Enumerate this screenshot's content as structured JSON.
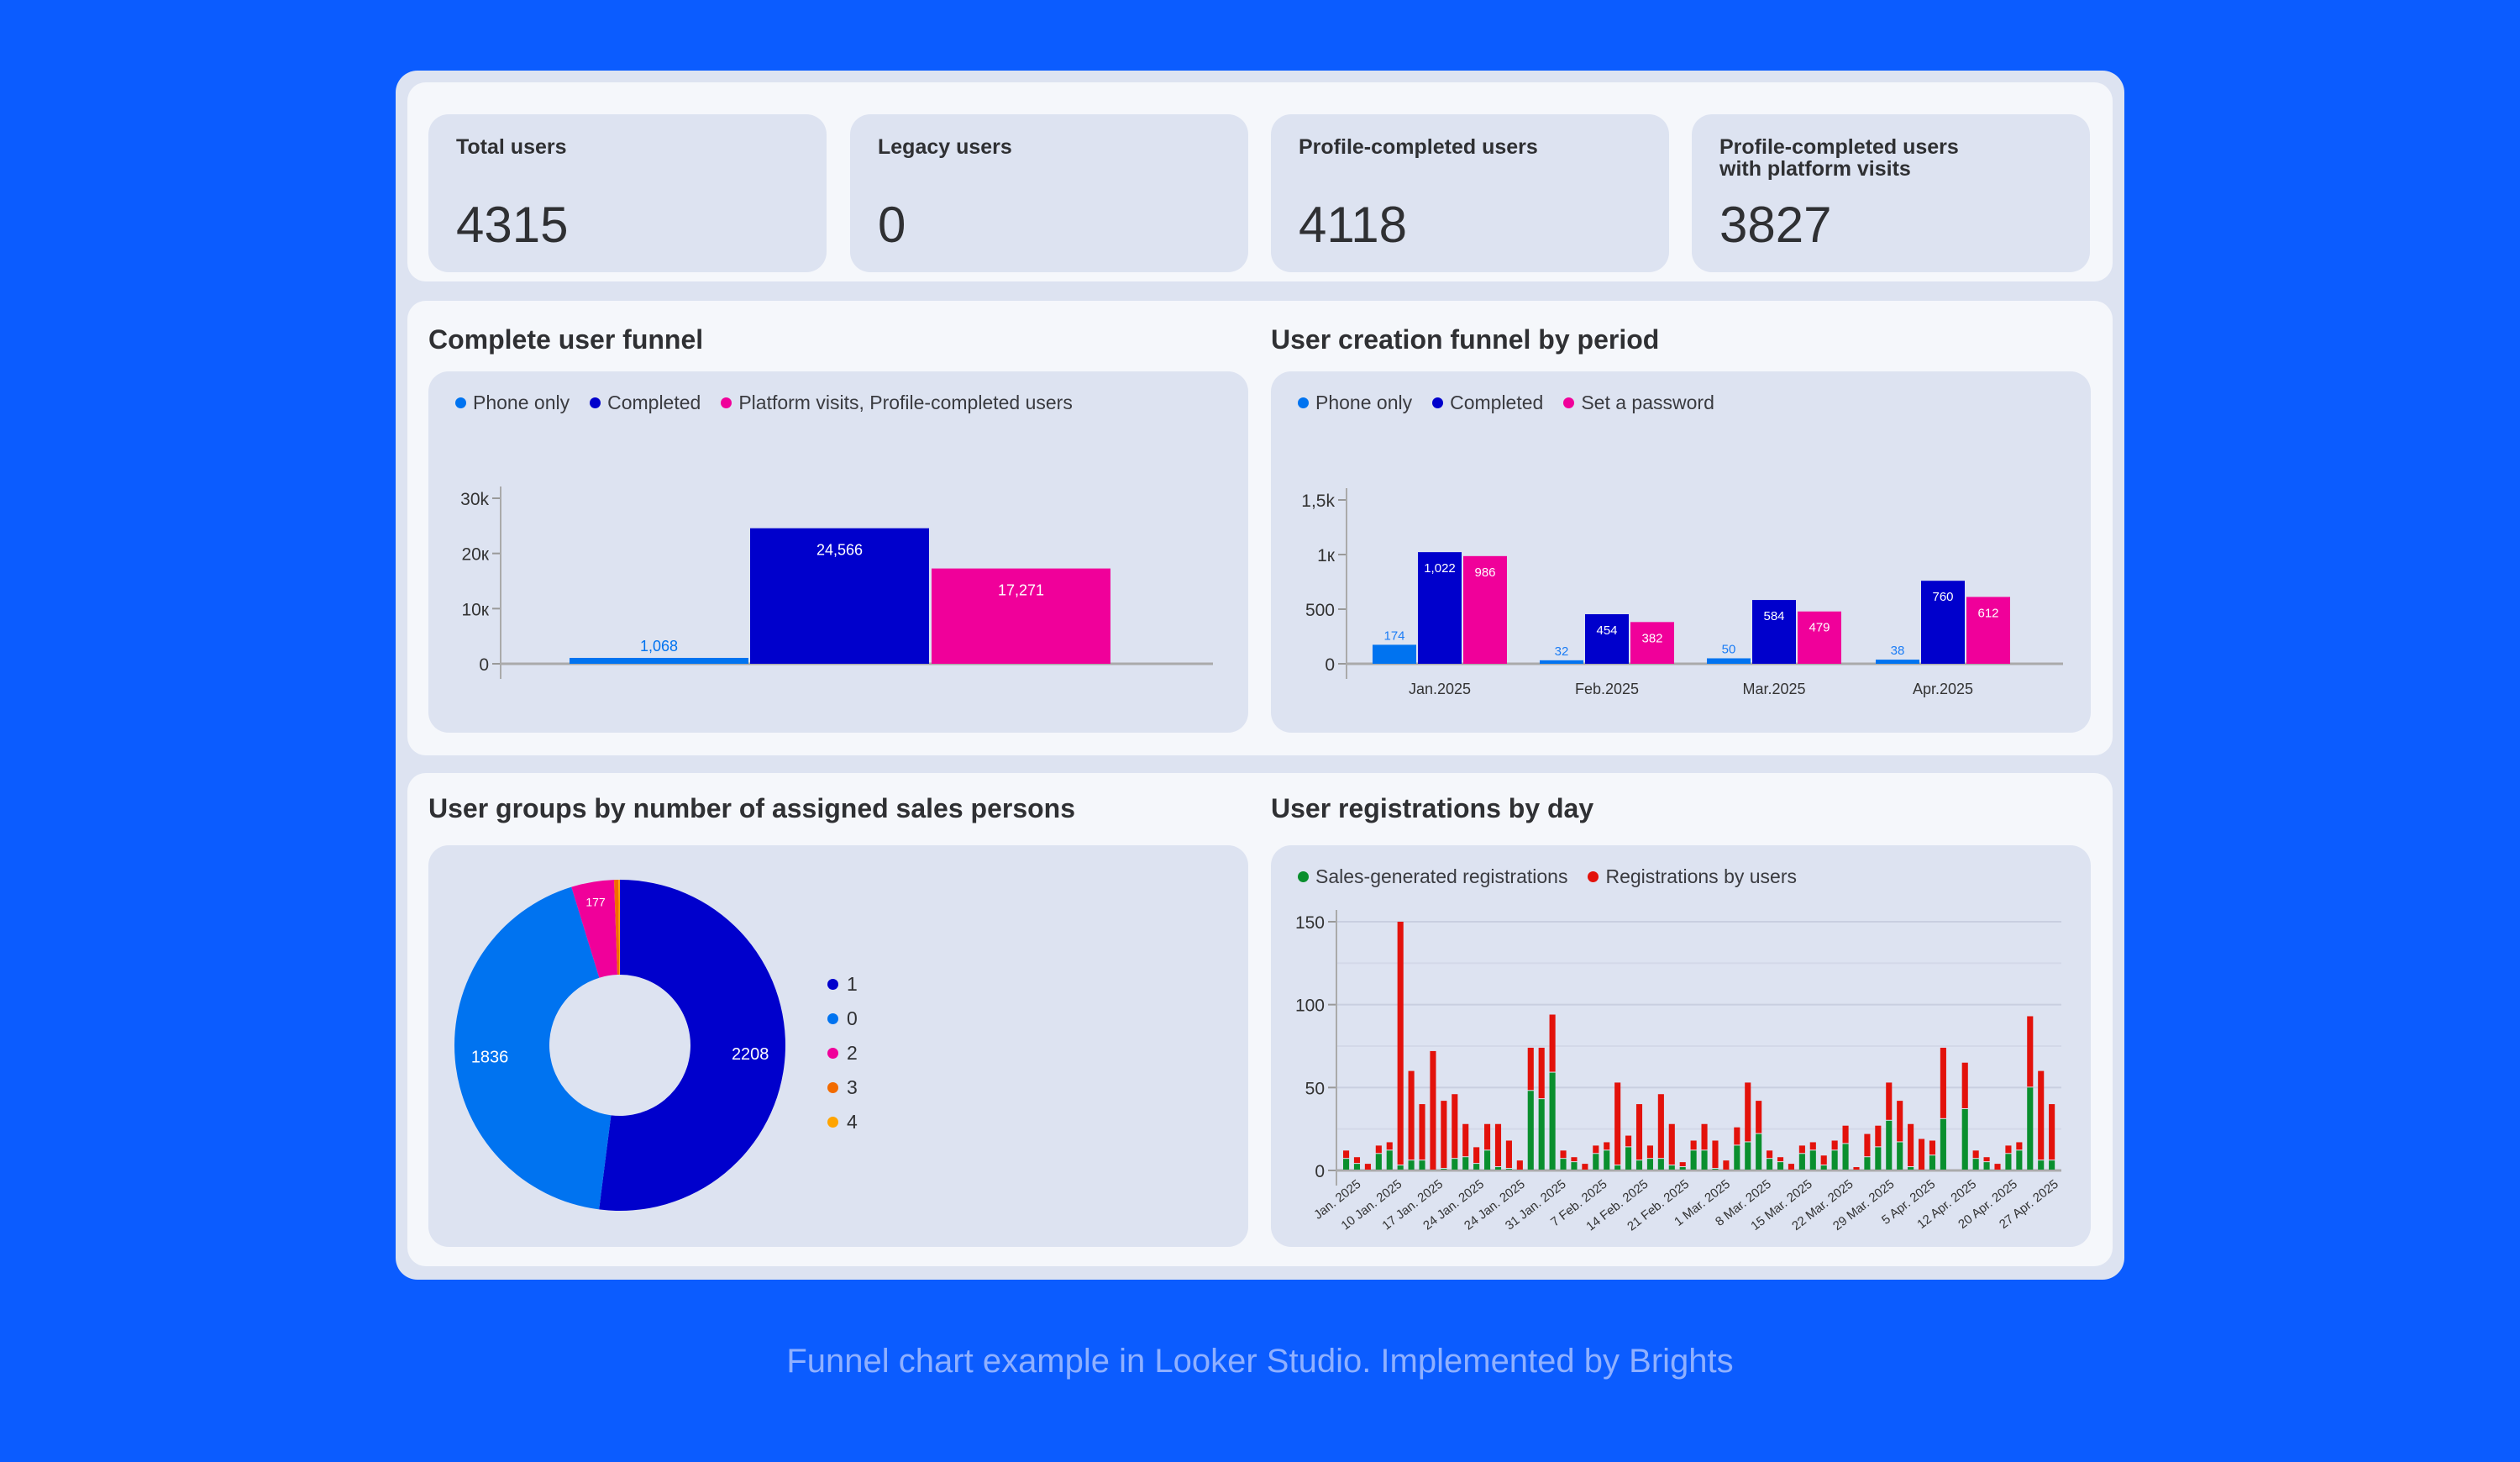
{
  "kpis": [
    {
      "label": "Total users",
      "value": "4315"
    },
    {
      "label": "Legacy users",
      "value": "0"
    },
    {
      "label": "Profile-completed users",
      "value": "4118"
    },
    {
      "label": "Profile-completed users with platform visits",
      "value": "3827"
    }
  ],
  "panels": {
    "funnel_title": "Complete user funnel",
    "period_title": "User creation funnel by period",
    "groups_title": "User groups by number of assigned sales persons",
    "daily_title": "User registrations by day"
  },
  "caption": "Funnel chart example in Looker Studio. Implemented by Brights",
  "chart_data": [
    {
      "type": "bar",
      "id": "funnel",
      "series": [
        {
          "name": "Phone only",
          "value": 1068,
          "label": "1,068",
          "color": "#0073f0"
        },
        {
          "name": "Completed",
          "value": 24566,
          "label": "24,566",
          "color": "#0000cc"
        },
        {
          "name": "Platform visits, Profile-completed users",
          "value": 17271,
          "label": "17,271",
          "color": "#f0009a"
        }
      ],
      "yticks": [
        {
          "v": 0,
          "t": "0"
        },
        {
          "v": 10000,
          "t": "10к"
        },
        {
          "v": 20000,
          "t": "20к"
        },
        {
          "v": 30000,
          "t": "30k"
        }
      ],
      "ylim": [
        0,
        30000
      ]
    },
    {
      "type": "bar",
      "id": "period",
      "categories": [
        "Jan.2025",
        "Feb.2025",
        "Mar.2025",
        "Apr.2025"
      ],
      "series": [
        {
          "name": "Phone only",
          "color": "#0073f0",
          "values": [
            174,
            32,
            50,
            38
          ],
          "labels": [
            "174",
            "32",
            "50",
            "38"
          ]
        },
        {
          "name": "Completed",
          "color": "#0000cc",
          "values": [
            1022,
            454,
            584,
            760
          ],
          "labels": [
            "1,022",
            "454",
            "584",
            "760"
          ]
        },
        {
          "name": "Set a password",
          "color": "#f0009a",
          "values": [
            986,
            382,
            479,
            612
          ],
          "labels": [
            "986",
            "382",
            "479",
            "612"
          ]
        }
      ],
      "yticks": [
        {
          "v": 0,
          "t": "0"
        },
        {
          "v": 500,
          "t": "500"
        },
        {
          "v": 1000,
          "t": "1к"
        },
        {
          "v": 1500,
          "t": "1,5k"
        }
      ],
      "ylim": [
        0,
        1500
      ]
    },
    {
      "type": "pie",
      "id": "groups",
      "donut": true,
      "slices": [
        {
          "name": "1",
          "value": 2208,
          "label": "2208",
          "color": "#0000cc"
        },
        {
          "name": "0",
          "value": 1836,
          "label": "1836",
          "color": "#0073f0"
        },
        {
          "name": "2",
          "value": 177,
          "label": "177",
          "color": "#f0009a"
        },
        {
          "name": "3",
          "value": 18,
          "label": "",
          "color": "#f26b00"
        },
        {
          "name": "4",
          "value": 6,
          "label": "",
          "color": "#ffa400"
        }
      ],
      "legend": "right"
    },
    {
      "type": "bar",
      "id": "daily",
      "stacked": true,
      "series": [
        {
          "name": "Sales-generated registrations",
          "color": "#0a8f2e",
          "values": [
            7,
            4,
            0,
            10,
            12,
            3,
            6,
            6,
            0,
            1,
            7,
            8,
            4,
            12,
            2,
            1,
            0,
            48,
            43,
            59,
            7,
            5,
            0,
            10,
            12,
            3,
            14,
            6,
            7,
            7,
            3,
            2,
            12,
            12,
            1,
            0,
            15,
            17,
            22,
            7,
            5,
            0,
            10,
            12,
            3,
            12,
            16,
            0,
            8,
            14,
            30,
            17,
            2,
            0,
            9,
            31,
            0,
            37,
            7,
            5,
            0,
            10,
            12,
            50,
            6,
            6
          ]
        },
        {
          "name": "Registrations by users",
          "color": "#e3120b",
          "values": [
            5,
            4,
            4,
            5,
            5,
            147,
            54,
            34,
            72,
            41,
            39,
            20,
            10,
            16,
            26,
            17,
            6,
            26,
            31,
            35,
            5,
            3,
            4,
            5,
            5,
            50,
            7,
            34,
            8,
            39,
            25,
            3,
            6,
            16,
            17,
            6,
            11,
            36,
            20,
            5,
            3,
            4,
            5,
            5,
            6,
            6,
            11,
            2,
            14,
            13,
            23,
            25,
            26,
            19,
            9,
            43,
            0,
            28,
            5,
            3,
            4,
            5,
            5,
            43,
            54,
            34
          ]
        }
      ],
      "xticks": [
        "Jan. 2025",
        "10 Jan. 2025",
        "17 Jan. 2025",
        "24 Jan. 2025",
        "24 Jan. 2025",
        "31 Jan. 2025",
        "7 Feb. 2025",
        "14 Feb. 2025",
        "21 Feb. 2025",
        "1 Mar. 2025",
        "8 Mar. 2025",
        "15 Mar. 2025",
        "22 Mar. 2025",
        "29 Mar. 2025",
        "5 Apr. 2025",
        "12 Apr. 2025",
        "20 Apr. 2025",
        "27 Apr. 2025"
      ],
      "yticks": [
        {
          "v": 0,
          "t": "0"
        },
        {
          "v": 50,
          "t": "50"
        },
        {
          "v": 100,
          "t": "100"
        },
        {
          "v": 150,
          "t": "150"
        }
      ],
      "ylim": [
        0,
        150
      ],
      "grid": true
    }
  ]
}
